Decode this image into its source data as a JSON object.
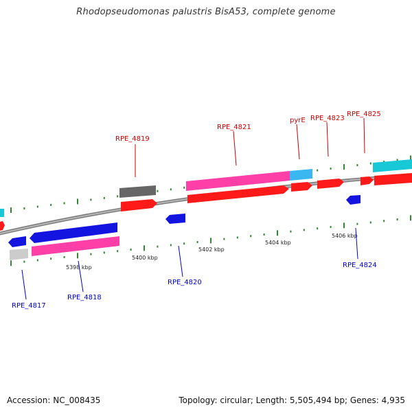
{
  "header": {
    "title": "Rhodopseudomonas palustris BisA53, complete genome"
  },
  "footer": {
    "accession": "Accession: NC_008435",
    "summary": "Topology: circular; Length: 5,505,494 bp; Genes: 4,935"
  },
  "colors": {
    "backbone": "#8a8a8a",
    "ticks": "#2f8a2f",
    "forward_cds": "#ff1a1a",
    "reverse_cds": "#1414e0",
    "forward_pink": "#ff3fa8",
    "cyan": "#19c8d6",
    "light_blue": "#3ab7f0",
    "dark_gray": "#666666",
    "light_gray": "#cccccc",
    "label_forward": "#cc0000",
    "label_reverse": "#0000cc"
  },
  "scale": {
    "ticks": [
      {
        "label": "5398 kbp"
      },
      {
        "label": "5400 kbp"
      },
      {
        "label": "5402 kbp"
      },
      {
        "label": "5404 kbp"
      },
      {
        "label": "5406 kbp"
      }
    ]
  },
  "genes": {
    "forward": [
      "RPE_4819",
      "RPE_4821",
      "pyrE",
      "RPE_4823",
      "RPE_4825"
    ],
    "reverse": [
      "RPE_4817",
      "RPE_4818",
      "RPE_4820",
      "RPE_4824"
    ]
  }
}
